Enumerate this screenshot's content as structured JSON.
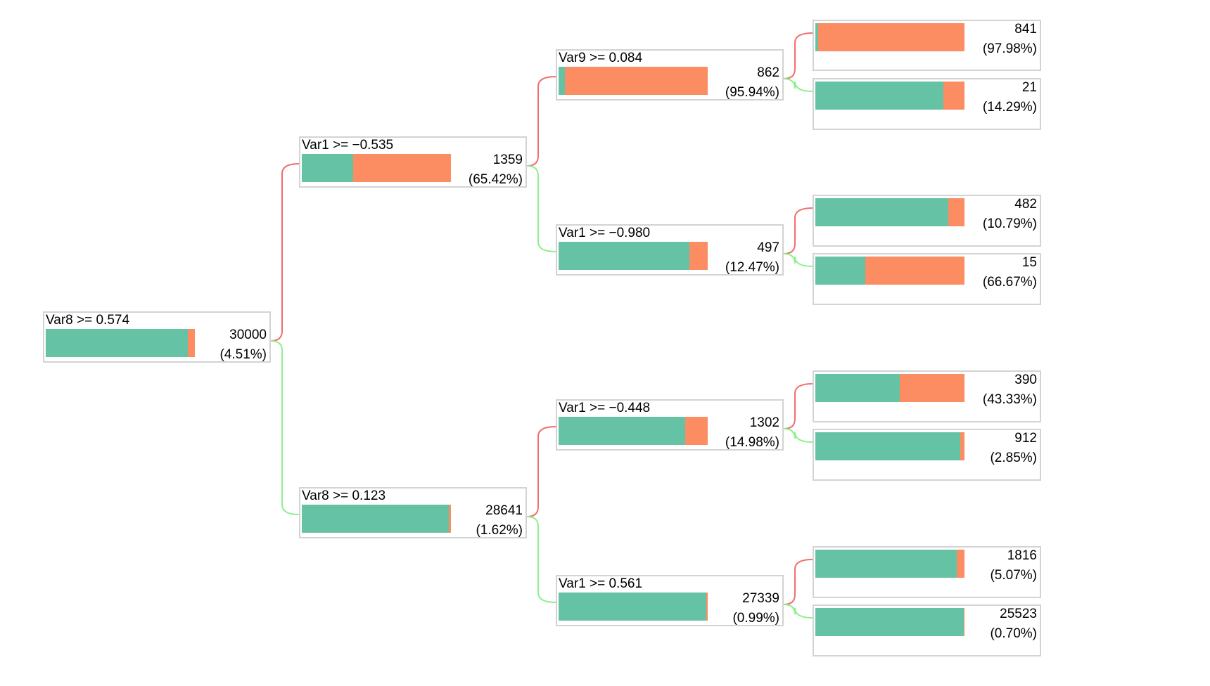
{
  "colors": {
    "negative": "#66c2a5",
    "positive": "#fc8d62",
    "edge_true": "#f26d6d",
    "edge_false": "#8fef8f",
    "border": "#d3d3d3"
  },
  "nodes": [
    {
      "id": "root",
      "split": "Var8 >= 0.574",
      "count": "30000",
      "pct": "(4.51%)",
      "fraction": 0.0451
    },
    {
      "id": "n1",
      "split": "Var1 >= −0.535",
      "count": "1359",
      "pct": "(65.42%)",
      "fraction": 0.6542
    },
    {
      "id": "n2",
      "split": "Var8 >= 0.123",
      "count": "28641",
      "pct": "(1.62%)",
      "fraction": 0.0162
    },
    {
      "id": "n11",
      "split": "Var9 >= 0.084",
      "count": "862",
      "pct": "(95.94%)",
      "fraction": 0.9594
    },
    {
      "id": "n12",
      "split": "Var1 >= −0.980",
      "count": "497",
      "pct": "(12.47%)",
      "fraction": 0.1247
    },
    {
      "id": "n21",
      "split": "Var1 >= −0.448",
      "count": "1302",
      "pct": "(14.98%)",
      "fraction": 0.1498
    },
    {
      "id": "n22",
      "split": "Var1 >= 0.561",
      "count": "27339",
      "pct": "(0.99%)",
      "fraction": 0.0099
    },
    {
      "id": "l1",
      "split": "",
      "count": "841",
      "pct": "(97.98%)",
      "fraction": 0.9798
    },
    {
      "id": "l2",
      "split": "",
      "count": "21",
      "pct": "(14.29%)",
      "fraction": 0.1429
    },
    {
      "id": "l3",
      "split": "",
      "count": "482",
      "pct": "(10.79%)",
      "fraction": 0.1079
    },
    {
      "id": "l4",
      "split": "",
      "count": "15",
      "pct": "(66.67%)",
      "fraction": 0.6667
    },
    {
      "id": "l5",
      "split": "",
      "count": "390",
      "pct": "(43.33%)",
      "fraction": 0.4333
    },
    {
      "id": "l6",
      "split": "",
      "count": "912",
      "pct": "(2.85%)",
      "fraction": 0.0285
    },
    {
      "id": "l7",
      "split": "",
      "count": "1816",
      "pct": "(5.07%)",
      "fraction": 0.0507
    },
    {
      "id": "l8",
      "split": "",
      "count": "25523",
      "pct": "(0.70%)",
      "fraction": 0.007
    }
  ],
  "edges": [
    {
      "from": "root",
      "to": "n1",
      "kind": "true"
    },
    {
      "from": "root",
      "to": "n2",
      "kind": "false"
    },
    {
      "from": "n1",
      "to": "n11",
      "kind": "true"
    },
    {
      "from": "n1",
      "to": "n12",
      "kind": "false"
    },
    {
      "from": "n2",
      "to": "n21",
      "kind": "true"
    },
    {
      "from": "n2",
      "to": "n22",
      "kind": "false"
    },
    {
      "from": "n11",
      "to": "l1",
      "kind": "true"
    },
    {
      "from": "n11",
      "to": "l2",
      "kind": "false"
    },
    {
      "from": "n12",
      "to": "l3",
      "kind": "true"
    },
    {
      "from": "n12",
      "to": "l4",
      "kind": "false"
    },
    {
      "from": "n21",
      "to": "l5",
      "kind": "true"
    },
    {
      "from": "n21",
      "to": "l6",
      "kind": "false"
    },
    {
      "from": "n22",
      "to": "l7",
      "kind": "true"
    },
    {
      "from": "n22",
      "to": "l8",
      "kind": "false"
    }
  ]
}
